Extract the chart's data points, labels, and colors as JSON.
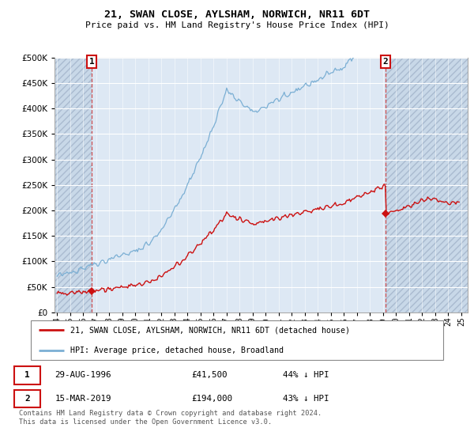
{
  "title": "21, SWAN CLOSE, AYLSHAM, NORWICH, NR11 6DT",
  "subtitle": "Price paid vs. HM Land Registry's House Price Index (HPI)",
  "legend_line1": "21, SWAN CLOSE, AYLSHAM, NORWICH, NR11 6DT (detached house)",
  "legend_line2": "HPI: Average price, detached house, Broadland",
  "annotation1_label": "1",
  "annotation1_date": "29-AUG-1996",
  "annotation1_price": "£41,500",
  "annotation1_hpi": "44% ↓ HPI",
  "annotation2_label": "2",
  "annotation2_date": "15-MAR-2019",
  "annotation2_price": "£194,000",
  "annotation2_hpi": "43% ↓ HPI",
  "footnote1": "Contains HM Land Registry data © Crown copyright and database right 2024.",
  "footnote2": "This data is licensed under the Open Government Licence v3.0.",
  "hpi_color": "#7bafd4",
  "price_color": "#cc1111",
  "marker_color": "#cc1111",
  "dashed_line_color": "#cc3333",
  "background_plot": "#dde8f4",
  "ylim": [
    0,
    500000
  ],
  "yticks": [
    0,
    50000,
    100000,
    150000,
    200000,
    250000,
    300000,
    350000,
    400000,
    450000,
    500000
  ],
  "sale1_x": 1996.65,
  "sale1_y": 41500,
  "sale2_x": 2019.2,
  "sale2_y": 194000,
  "xmin": 1993.8,
  "xmax": 2025.5
}
